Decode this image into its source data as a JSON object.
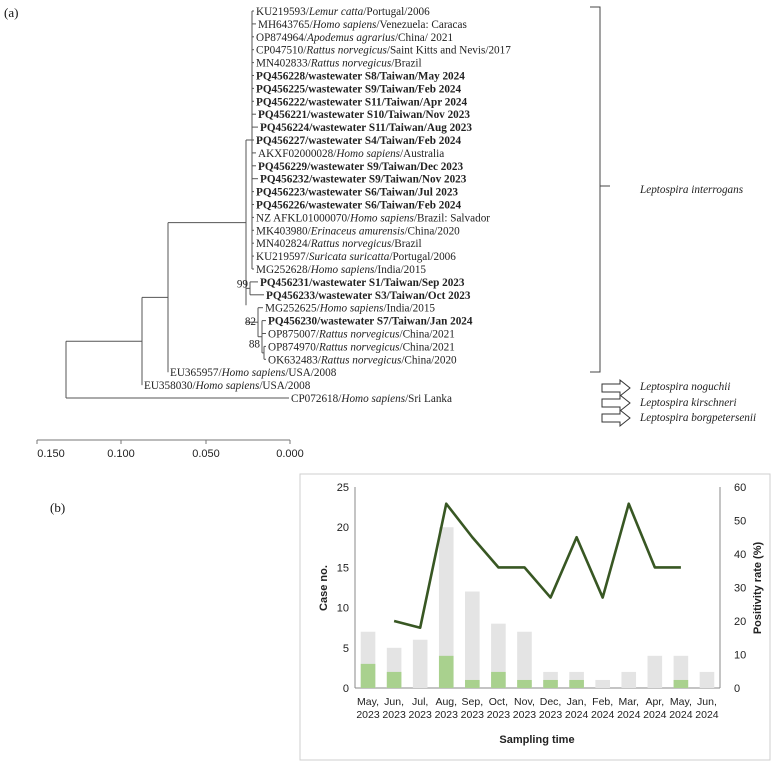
{
  "panel_a_label": "(a)",
  "panel_b_label": "(b)",
  "tree": {
    "leaves": [
      {
        "acc": "KU219593/",
        "host": "Lemur catta",
        "rest": "/Portugal/2006",
        "bold": false
      },
      {
        "acc": "MH643765/",
        "host": "Homo sapiens",
        "rest": "/Venezuela: Caracas",
        "bold": false
      },
      {
        "acc": "OP874964/",
        "host": "Apodemus agrarius",
        "rest": "/China/ 2021",
        "bold": false
      },
      {
        "acc": "CP047510/",
        "host": "Rattus norvegicus",
        "rest": "/Saint Kitts and Nevis/2017",
        "bold": false
      },
      {
        "acc": "MN402833/",
        "host": "Rattus norvegicus",
        "rest": "/Brazil",
        "bold": false
      },
      {
        "acc": "PQ456228/wastewater S8/Taiwan/May 2024",
        "host": "",
        "rest": "",
        "bold": true
      },
      {
        "acc": "PQ456225/wastewater S9/Taiwan/Feb 2024",
        "host": "",
        "rest": "",
        "bold": true
      },
      {
        "acc": "PQ456222/wastewater S11/Taiwan/Apr 2024",
        "host": "",
        "rest": "",
        "bold": true
      },
      {
        "acc": "PQ456221/wastewater S10/Taiwan/Nov 2023",
        "host": "",
        "rest": "",
        "bold": true
      },
      {
        "acc": "PQ456224/wastewater S11/Taiwan/Aug 2023",
        "host": "",
        "rest": "",
        "bold": true
      },
      {
        "acc": "PQ456227/wastewater S4/Taiwan/Feb 2024",
        "host": "",
        "rest": "",
        "bold": true
      },
      {
        "acc": "AKXF02000028/",
        "host": "Homo sapiens",
        "rest": "/Australia",
        "bold": false
      },
      {
        "acc": "PQ456229/wastewater S9/Taiwan/Dec 2023",
        "host": "",
        "rest": "",
        "bold": true
      },
      {
        "acc": "PQ456232/wastewater S9/Taiwan/Nov 2023",
        "host": "",
        "rest": "",
        "bold": true
      },
      {
        "acc": "PQ456223/wastewater S6/Taiwan/Jul 2023",
        "host": "",
        "rest": "",
        "bold": true
      },
      {
        "acc": "PQ456226/wastewater S6/Taiwan/Feb 2024",
        "host": "",
        "rest": "",
        "bold": true
      },
      {
        "acc": "NZ AFKL01000070/",
        "host": "Homo sapiens",
        "rest": "/Brazil: Salvador",
        "bold": false
      },
      {
        "acc": "MK403980/",
        "host": "Erinaceus amurensis",
        "rest": "/China/2020",
        "bold": false
      },
      {
        "acc": "MN402824/",
        "host": "Rattus norvegicus",
        "rest": "/Brazil",
        "bold": false
      },
      {
        "acc": "KU219597/",
        "host": "Suricata suricatta",
        "rest": "/Portugal/2006",
        "bold": false
      },
      {
        "acc": "MG252628/",
        "host": "Homo sapiens",
        "rest": "/India/2015",
        "bold": false
      },
      {
        "acc": "PQ456231/wastewater S1/Taiwan/Sep 2023",
        "host": "",
        "rest": "",
        "bold": true
      },
      {
        "acc": "PQ456233/wastewater S3/Taiwan/Oct 2023",
        "host": "",
        "rest": "",
        "bold": true
      },
      {
        "acc": "MG252625/",
        "host": "Homo sapiens",
        "rest": "/India/2015",
        "bold": false
      },
      {
        "acc": "PQ456230/wastewater S7/Taiwan/Jan 2024",
        "host": "",
        "rest": "",
        "bold": true
      },
      {
        "acc": "OP875007/",
        "host": "Rattus norvegicus",
        "rest": "/China/2021",
        "bold": false
      },
      {
        "acc": "OP874970/",
        "host": "Rattus norvegicus",
        "rest": "/China/2021",
        "bold": false
      },
      {
        "acc": "OK632483/",
        "host": "Rattus norvegicus",
        "rest": "/China/2020",
        "bold": false
      },
      {
        "acc": "EU365957/",
        "host": "Homo sapiens",
        "rest": "/USA/2008",
        "bold": false
      },
      {
        "acc": "EU358030/",
        "host": "Homo sapiens",
        "rest": "/USA/2008",
        "bold": false
      },
      {
        "acc": "CP072618/",
        "host": "Homo sapiens",
        "rest": "/Sri Lanka",
        "bold": false
      }
    ],
    "bootstrap": [
      "99",
      "82",
      "88"
    ],
    "clade_label": "Leptospira interrogans",
    "outgroup_labels": [
      "Leptospira noguchii",
      "Leptospira kirschneri",
      "Leptospira borgpetersenii"
    ],
    "scale_ticks": [
      "0.150",
      "0.100",
      "0.050",
      "0.000"
    ]
  },
  "chart_data": {
    "type": "bar",
    "categories": [
      [
        "May,",
        "2023"
      ],
      [
        "Jun,",
        "2023"
      ],
      [
        "Jul,",
        "2023"
      ],
      [
        "Aug,",
        "2023"
      ],
      [
        "Sep,",
        "2023"
      ],
      [
        "Oct,",
        "2023"
      ],
      [
        "Nov,",
        "2023"
      ],
      [
        "Dec,",
        "2023"
      ],
      [
        "Jan,",
        "2024"
      ],
      [
        "Feb,",
        "2024"
      ],
      [
        "Mar,",
        "2024"
      ],
      [
        "Apr,",
        "2024"
      ],
      [
        "May,",
        "2024"
      ],
      [
        "Jun,",
        "2024"
      ]
    ],
    "series": [
      {
        "name": "Total samples",
        "type": "bar",
        "color": "#e4e4e4",
        "values": [
          7,
          5,
          6,
          20,
          12,
          8,
          7,
          2,
          2,
          1,
          2,
          4,
          4,
          2
        ]
      },
      {
        "name": "Positive samples",
        "type": "bar",
        "color": "#a9d18e",
        "values": [
          3,
          2,
          0,
          4,
          1,
          2,
          1,
          1,
          1,
          0,
          0,
          0,
          1,
          0
        ]
      },
      {
        "name": "Positivity rate (%)",
        "type": "line",
        "axis": "right",
        "color": "#385723",
        "values": [
          null,
          20,
          18,
          55,
          45,
          36,
          36,
          27,
          45,
          27,
          55,
          36,
          36,
          null
        ]
      }
    ],
    "xlabel": "Sampling time",
    "ylabel": "Case no.",
    "y2label": "Positivity rate (%)",
    "ylim": [
      0,
      25
    ],
    "yticks": [
      0,
      5,
      10,
      15,
      20,
      25
    ],
    "y2lim": [
      0,
      60
    ],
    "y2ticks": [
      0,
      10,
      20,
      30,
      40,
      50,
      60
    ]
  }
}
